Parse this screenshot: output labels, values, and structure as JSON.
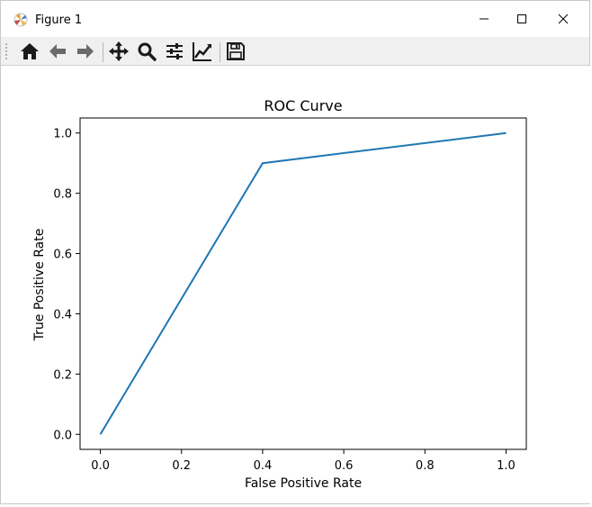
{
  "window": {
    "title": "Figure 1",
    "controls": [
      "minimize",
      "maximize",
      "close"
    ]
  },
  "toolbar": {
    "tools": [
      {
        "name": "home-icon",
        "label": "Home"
      },
      {
        "name": "back-arrow-icon",
        "label": "Back"
      },
      {
        "name": "forward-arrow-icon",
        "label": "Forward"
      },
      {
        "name": "pan-move-icon",
        "label": "Pan"
      },
      {
        "name": "zoom-magnifier-icon",
        "label": "Zoom"
      },
      {
        "name": "subplots-sliders-icon",
        "label": "Configure subplots"
      },
      {
        "name": "edit-axis-icon",
        "label": "Edit axis"
      },
      {
        "name": "save-floppy-icon",
        "label": "Save"
      }
    ]
  },
  "chart_data": {
    "type": "line",
    "title": "ROC Curve",
    "xlabel": "False Positive Rate",
    "ylabel": "True Positive Rate",
    "xlim": [
      -0.05,
      1.05
    ],
    "ylim": [
      -0.05,
      1.05
    ],
    "xticks": [
      "0.0",
      "0.2",
      "0.4",
      "0.6",
      "0.8",
      "1.0"
    ],
    "yticks": [
      "0.0",
      "0.2",
      "0.4",
      "0.6",
      "0.8",
      "1.0"
    ],
    "grid": false,
    "series": [
      {
        "x": [
          0.0,
          0.4,
          1.0
        ],
        "y": [
          0.0,
          0.9,
          1.0
        ],
        "color": "#1f77b4"
      }
    ]
  }
}
